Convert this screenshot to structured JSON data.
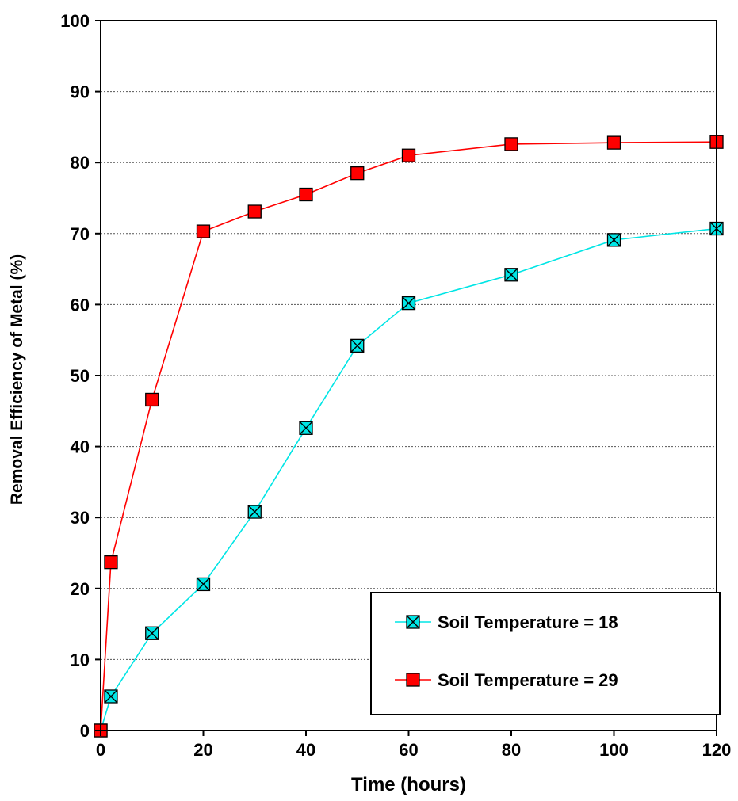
{
  "chart_data": {
    "type": "line",
    "title": "",
    "xlabel": "Time (hours)",
    "ylabel": "Removal Efficiency of Metal (%)",
    "xlim": [
      0,
      120
    ],
    "ylim": [
      0,
      100
    ],
    "x_ticks": [
      0,
      20,
      40,
      60,
      80,
      100,
      120
    ],
    "y_ticks": [
      0,
      10,
      20,
      30,
      40,
      50,
      60,
      70,
      80,
      90,
      100
    ],
    "grid": "horizontal dashed",
    "legend_position": "bottom-right",
    "series": [
      {
        "name": "Soil Temperature = 18",
        "color": "#00E5E5",
        "marker": "x-square",
        "x": [
          0,
          2,
          10,
          20,
          30,
          40,
          50,
          60,
          80,
          100,
          120
        ],
        "values": [
          0,
          4.8,
          13.7,
          20.6,
          30.8,
          42.6,
          54.2,
          60.2,
          64.2,
          69.1,
          70.7
        ]
      },
      {
        "name": "Soil Temperature = 29",
        "color": "#FF0000",
        "marker": "square",
        "x": [
          0,
          2,
          10,
          20,
          30,
          40,
          50,
          60,
          80,
          100,
          120
        ],
        "values": [
          0,
          23.7,
          46.6,
          70.3,
          73.1,
          75.5,
          78.5,
          81.0,
          82.6,
          82.8,
          82.9
        ]
      }
    ]
  }
}
